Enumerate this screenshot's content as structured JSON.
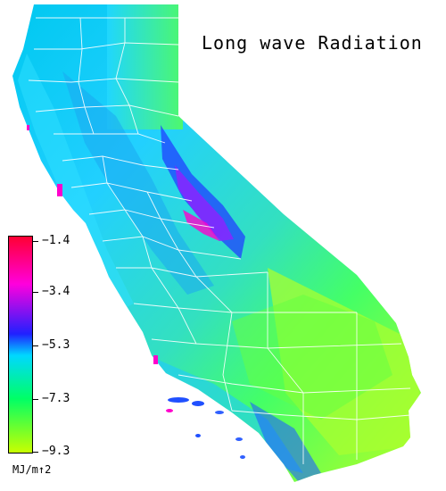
{
  "map": {
    "title": "Long wave Radiation",
    "region": "California",
    "colors": {
      "ocean": "#ffffff",
      "boundary": "#ffffff"
    }
  },
  "legend": {
    "units": "MJ/m↑2",
    "min": -9.3,
    "max": -1.4,
    "ticks": [
      {
        "label": "−1.4",
        "value": -1.4
      },
      {
        "label": "−3.4",
        "value": -3.4
      },
      {
        "label": "−5.3",
        "value": -5.3
      },
      {
        "label": "−7.3",
        "value": -7.3
      },
      {
        "label": "−9.3",
        "value": -9.3
      }
    ],
    "gradient": [
      "#ff0033",
      "#ff00dd",
      "#2020ff",
      "#00d8ff",
      "#00ff66",
      "#c8ff00"
    ]
  }
}
